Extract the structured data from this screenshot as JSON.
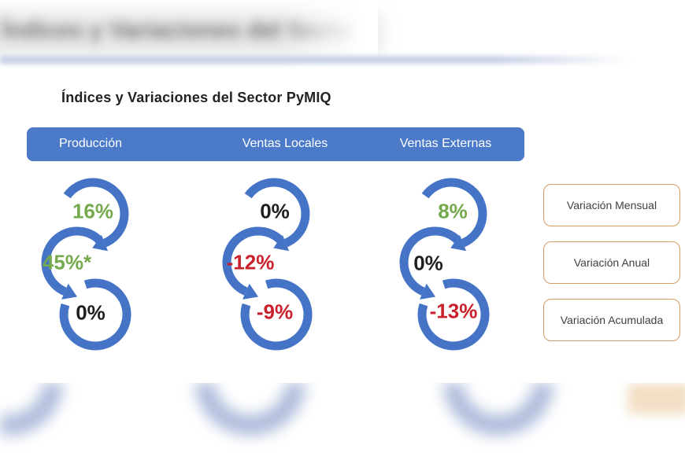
{
  "title": "Índices y Variaciones del Sector PyMIQ",
  "header_columns": [
    "Producción",
    "Ventas Locales",
    "Ventas Externas"
  ],
  "legend_boxes": [
    "Variación Mensual",
    "Variación Anual",
    "Variación Acumulada"
  ],
  "values": {
    "produccion": {
      "mensual": "16%",
      "anual": "45%*",
      "acumulada": "0%"
    },
    "ventas_locales": {
      "mensual": "0%",
      "anual": "-12%",
      "acumulada": "-9%"
    },
    "ventas_externas": {
      "mensual": "8%",
      "anual": "0%",
      "acumulada": "-13%"
    }
  },
  "colors": {
    "arrow_blue": "#4573C6",
    "header_blue": "#4B7AC9",
    "header_text": "#FFFFFF",
    "positive_green": "#74A94E",
    "negative_red": "#C9202C",
    "neutral_black": "#1F1F1F",
    "box_border": "#D49B62",
    "box_text": "#3F3F3F"
  },
  "background": {
    "blurred_title": "Índices y Variaciones del Sector PyMIQ"
  },
  "chart_data": {
    "type": "table",
    "title": "Índices y Variaciones del Sector PyMIQ",
    "categories": [
      "Producción",
      "Ventas Locales",
      "Ventas Externas"
    ],
    "series": [
      {
        "name": "Variación Mensual",
        "values": [
          "16%",
          "0%",
          "8%"
        ],
        "value_colors": [
          "green",
          "black",
          "green"
        ]
      },
      {
        "name": "Variación Anual",
        "values": [
          "45%*",
          "-12%",
          "0%"
        ],
        "value_colors": [
          "green",
          "red",
          "black"
        ]
      },
      {
        "name": "Variación Acumulada",
        "values": [
          "0%",
          "-9%",
          "-13%"
        ],
        "value_colors": [
          "black",
          "red",
          "red"
        ]
      }
    ],
    "legend_position": "right",
    "notes": "Each column shows three interlocking blue circular arrows; green = positive variation, red = negative variation, black = neutral (0%)."
  }
}
